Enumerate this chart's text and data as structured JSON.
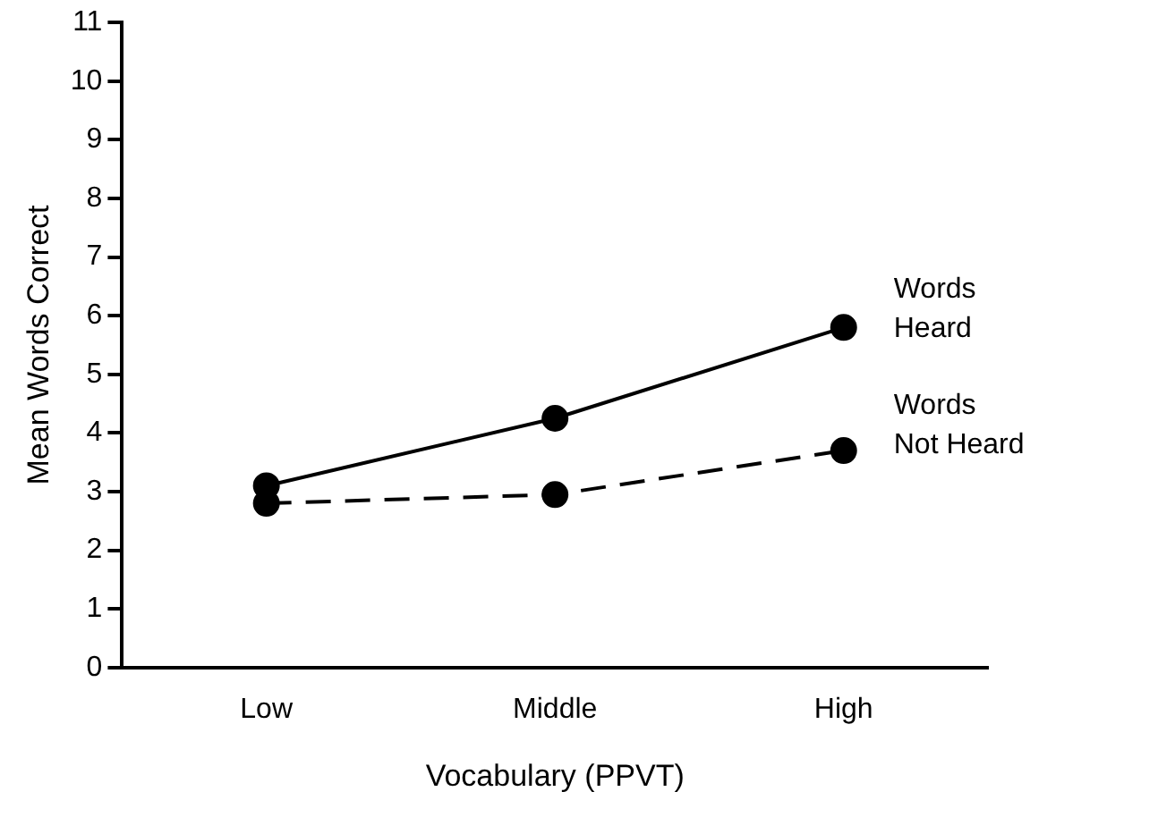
{
  "chart_data": {
    "type": "line",
    "xlabel": "Vocabulary (PPVT)",
    "ylabel": "Mean Words Correct",
    "categories": [
      "Low",
      "Middle",
      "High"
    ],
    "series": [
      {
        "name": "Words Heard",
        "color": "#000000",
        "values": [
          3.1,
          4.25,
          5.8
        ],
        "line_style": "solid"
      },
      {
        "name": "Words Not Heard",
        "color": "#000000",
        "values": [
          2.8,
          2.95,
          3.7
        ],
        "line_style": "dashed"
      }
    ],
    "ylim": [
      0,
      11
    ],
    "yticks": [
      0,
      1,
      2,
      3,
      4,
      5,
      6,
      7,
      8,
      9,
      10,
      11
    ],
    "grid": false,
    "legend": false,
    "marker": "circle"
  }
}
